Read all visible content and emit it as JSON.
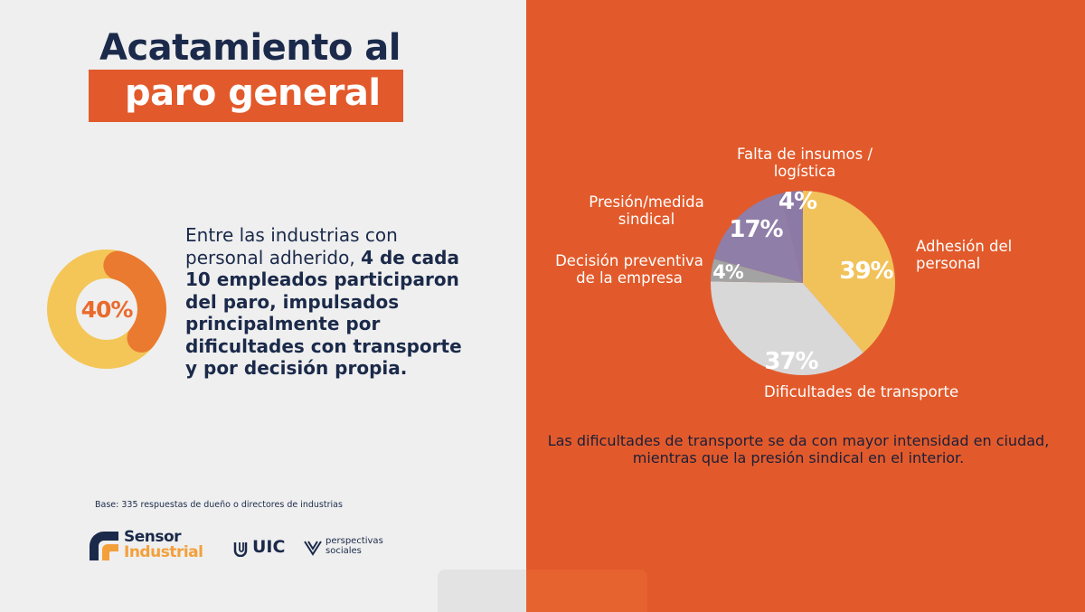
{
  "title": {
    "line1": "Acatamiento al",
    "line2": "paro general"
  },
  "donut": {
    "value_label": "40%",
    "fraction": 0.4,
    "fill_color": "#f0c65a",
    "accent_color": "#ea7a30"
  },
  "paragraph": {
    "normal": "Entre las industrias con personal adherido, ",
    "bold": "4 de cada 10 empleados participaron del paro, impulsados principalmente por dificultades con transporte y por decisión propia."
  },
  "base_note": "Base: 335 respuestas de dueño o directores de industrias",
  "logos": {
    "sensor_line1": "Sensor",
    "sensor_line2": "Industrial",
    "uic": "UIC",
    "perspectivas_line1": "perspectivas",
    "perspectivas_line2": "sociales"
  },
  "chart_data": {
    "type": "pie",
    "title": "",
    "slices": [
      {
        "label": "Adhesión del personal",
        "value": 39,
        "value_label": "39%",
        "color": "#f2c25a"
      },
      {
        "label": "Dificultades de transporte",
        "value": 37,
        "value_label": "37%",
        "color": "#d8d8d8"
      },
      {
        "label": "Decisión preventiva de la empresa",
        "value": 4,
        "value_label": "4%",
        "color": "#a3a3a3"
      },
      {
        "label": "Presión/medida sindical",
        "value": 17,
        "value_label": "17%",
        "color": "#8e7ea8"
      },
      {
        "label": "Falta de insumos / logística",
        "value": 4,
        "value_label": "4%",
        "color": "#8c7aa6"
      }
    ],
    "start_angle_deg": 0,
    "direction": "clockwise"
  },
  "footnote": "Las dificultades de transporte se da con mayor intensidad en ciudad, mientras que la presión sindical en el interior."
}
